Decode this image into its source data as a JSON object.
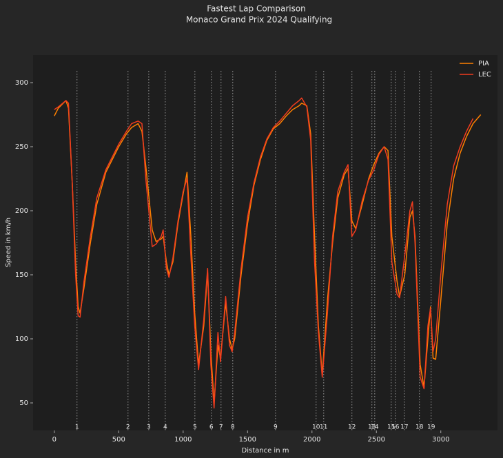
{
  "chart_data": {
    "type": "line",
    "title": "Fastest Lap Comparison",
    "subtitle": "Monaco Grand Prix 2024 Qualifying",
    "x_label": "Distance in m",
    "y_label": "Speed in km/h",
    "x": [
      0,
      30,
      90,
      110,
      140,
      165,
      185,
      200,
      230,
      280,
      330,
      400,
      500,
      560,
      600,
      650,
      680,
      710,
      760,
      790,
      830,
      845,
      870,
      890,
      920,
      960,
      1000,
      1030,
      1060,
      1090,
      1120,
      1160,
      1190,
      1215,
      1240,
      1270,
      1290,
      1330,
      1360,
      1380,
      1400,
      1450,
      1500,
      1550,
      1600,
      1650,
      1700,
      1750,
      1800,
      1850,
      1900,
      1920,
      1960,
      1990,
      2020,
      2050,
      2080,
      2120,
      2160,
      2200,
      2250,
      2280,
      2310,
      2340,
      2390,
      2440,
      2480,
      2520,
      2560,
      2590,
      2620,
      2660,
      2680,
      2720,
      2760,
      2780,
      2800,
      2840,
      2870,
      2900,
      2920,
      2940,
      2960,
      3000,
      3050,
      3100,
      3150,
      3200,
      3250,
      3310
    ],
    "series": [
      {
        "name": "PIA",
        "color": "#ff8000",
        "values": [
          274,
          280,
          286,
          280,
          220,
          160,
          125,
          120,
          140,
          175,
          205,
          230,
          250,
          260,
          265,
          268,
          262,
          235,
          185,
          176,
          178,
          180,
          160,
          150,
          160,
          190,
          213,
          230,
          180,
          120,
          80,
          110,
          152,
          90,
          50,
          95,
          85,
          128,
          100,
          92,
          100,
          150,
          190,
          220,
          240,
          255,
          264,
          268,
          274,
          279,
          282,
          284,
          282,
          260,
          180,
          110,
          72,
          130,
          175,
          210,
          228,
          233,
          192,
          186,
          205,
          225,
          236,
          245,
          250,
          247,
          180,
          145,
          133,
          150,
          195,
          200,
          180,
          80,
          62,
          100,
          125,
          85,
          84,
          130,
          190,
          225,
          245,
          258,
          268,
          275
        ]
      },
      {
        "name": "LEC",
        "color": "#f03c1e",
        "values": [
          279,
          281,
          286,
          284,
          220,
          150,
          118,
          117,
          145,
          180,
          210,
          232,
          252,
          262,
          268,
          270,
          268,
          225,
          172,
          174,
          180,
          185,
          155,
          148,
          163,
          192,
          215,
          225,
          165,
          110,
          76,
          115,
          155,
          80,
          46,
          105,
          82,
          133,
          95,
          90,
          105,
          155,
          195,
          222,
          242,
          256,
          265,
          270,
          276,
          282,
          286,
          288,
          281,
          255,
          160,
          105,
          70,
          120,
          180,
          215,
          230,
          236,
          180,
          185,
          208,
          224,
          232,
          244,
          250,
          240,
          160,
          135,
          132,
          165,
          200,
          207,
          175,
          70,
          61,
          110,
          124,
          90,
          100,
          150,
          205,
          235,
          250,
          262,
          272,
          null
        ]
      }
    ],
    "xlim": [
      -165,
      3440
    ],
    "ylim": [
      28.5,
      321.5
    ],
    "xticks": [
      0,
      500,
      1000,
      1500,
      2000,
      2500,
      3000
    ],
    "yticks": [
      50,
      100,
      150,
      200,
      250,
      300
    ],
    "legend": "upper right",
    "corners": {
      "labels": [
        "1",
        "2",
        "3",
        "4",
        "5",
        "6",
        "7",
        "8",
        "9",
        "10",
        "11",
        "12",
        "13",
        "14",
        "15",
        "16",
        "17",
        "18",
        "19"
      ],
      "distances": [
        176,
        572,
        733,
        861,
        1091,
        1219,
        1294,
        1385,
        1717,
        2032,
        2091,
        2310,
        2465,
        2487,
        2615,
        2647,
        2717,
        2834,
        2925
      ]
    }
  }
}
